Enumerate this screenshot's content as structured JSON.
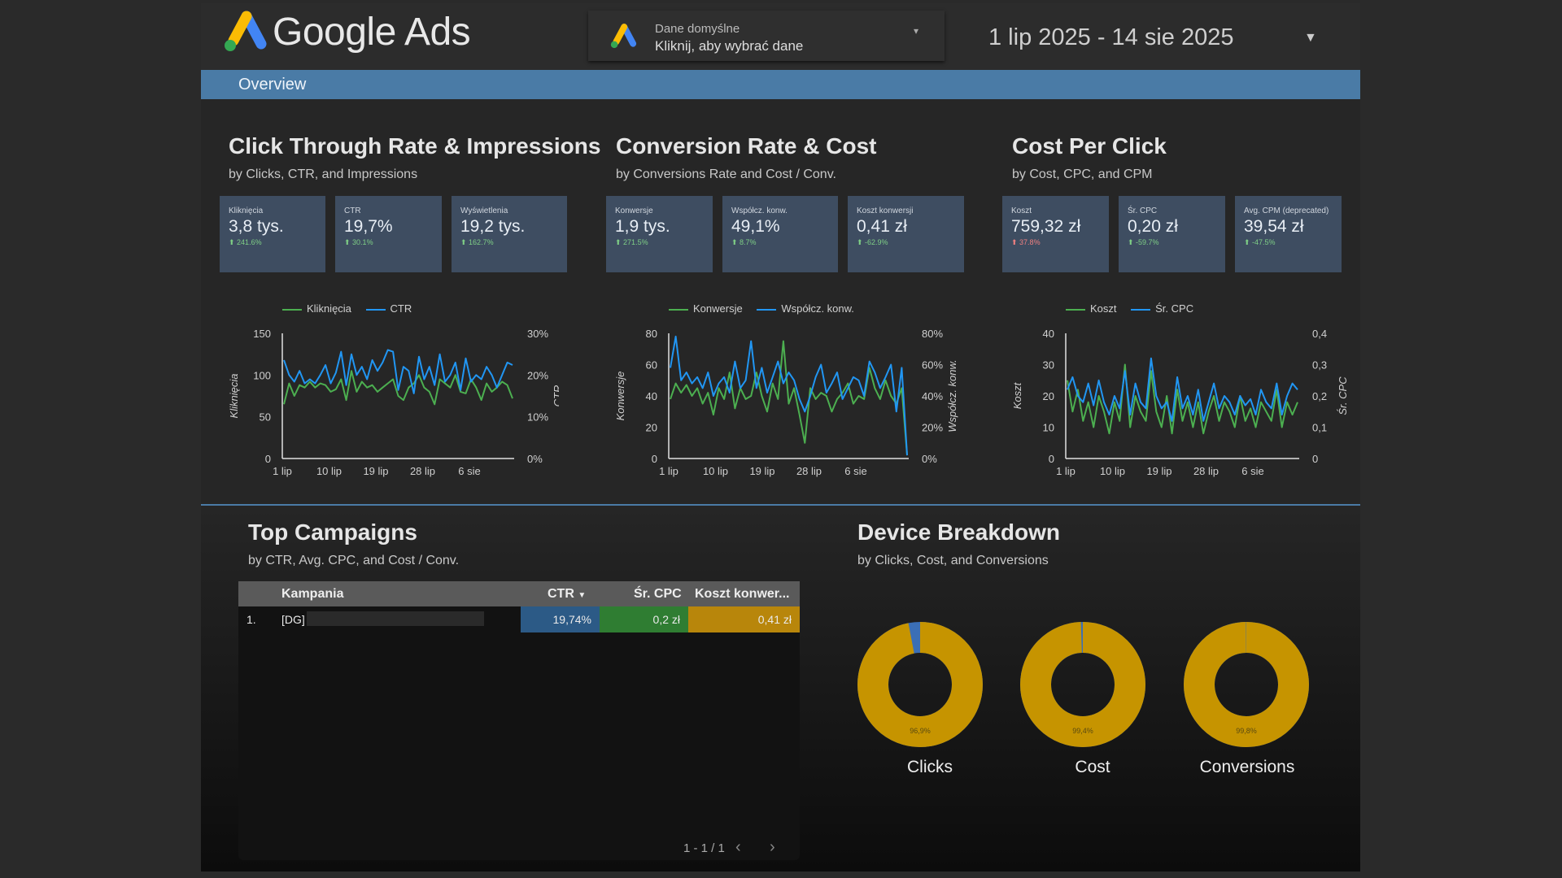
{
  "header": {
    "brand": "Google Ads",
    "data_source_title": "Dane domyślne",
    "data_source_subtitle": "Kliknij, aby wybrać dane",
    "date_range": "1 lip 2025 - 14 sie 2025"
  },
  "nav": {
    "tab_overview": "Overview"
  },
  "colors": {
    "accent": "#4a7ba6",
    "green": "#4caf50",
    "blue": "#2196f3",
    "gold": "#c69400",
    "tile": "#3e4d61"
  },
  "sections": {
    "ctr": {
      "title": "Click Through Rate & Impressions",
      "subtitle": "by Clicks, CTR, and Impressions"
    },
    "conv": {
      "title": "Conversion Rate & Cost",
      "subtitle": "by Conversions Rate and Cost / Conv."
    },
    "cpc": {
      "title": "Cost Per Click",
      "subtitle": "by Cost, CPC, and CPM"
    },
    "campaigns": {
      "title": "Top Campaigns",
      "subtitle": "by CTR, Avg. CPC, and Cost / Conv."
    },
    "devices": {
      "title": "Device Breakdown",
      "subtitle": "by Clicks, Cost, and Conversions"
    }
  },
  "kpis": [
    {
      "label": "Kliknięcia",
      "value": "3,8 tys.",
      "delta": "241.6%",
      "dir": "up"
    },
    {
      "label": "CTR",
      "value": "19,7%",
      "delta": "30.1%",
      "dir": "up"
    },
    {
      "label": "Wyświetlenia",
      "value": "19,2 tys.",
      "delta": "162.7%",
      "dir": "up"
    },
    {
      "label": "Konwersje",
      "value": "1,9 tys.",
      "delta": "271.5%",
      "dir": "up"
    },
    {
      "label": "Współcz. konw.",
      "value": "49,1%",
      "delta": "8.7%",
      "dir": "up"
    },
    {
      "label": "Koszt konwersji",
      "value": "0,41 zł",
      "delta": "-62.9%",
      "dir": "up"
    },
    {
      "label": "Koszt",
      "value": "759,32 zł",
      "delta": "37.8%",
      "dir": "down"
    },
    {
      "label": "Śr. CPC",
      "value": "0,20 zł",
      "delta": "-59.7%",
      "dir": "up"
    },
    {
      "label": "Avg. CPM (deprecated)",
      "value": "39,54 zł",
      "delta": "-47.5%",
      "dir": "up"
    }
  ],
  "chart_data": [
    {
      "type": "line",
      "x_ticks": [
        "1 lip",
        "10 lip",
        "19 lip",
        "28 lip",
        "6 sie"
      ],
      "y_left": {
        "label": "Kliknięcia",
        "ticks": [
          "0",
          "50",
          "100",
          "150"
        ],
        "ylim": [
          0,
          150
        ]
      },
      "y_right": {
        "label": "CTR",
        "ticks": [
          "0%",
          "10%",
          "20%",
          "30%"
        ],
        "ylim": [
          0,
          30
        ]
      },
      "series": [
        {
          "name": "Kliknięcia",
          "axis": "left",
          "color": "#4caf50",
          "values": [
            65,
            90,
            75,
            88,
            85,
            92,
            85,
            90,
            88,
            80,
            83,
            95,
            70,
            105,
            80,
            92,
            85,
            88,
            80,
            85,
            90,
            95,
            75,
            70,
            85,
            90,
            100,
            85,
            80,
            65,
            95,
            90,
            85,
            100,
            80,
            78,
            95,
            85,
            70,
            90,
            80,
            85,
            92,
            88,
            72
          ]
        },
        {
          "name": "CTR",
          "axis": "left",
          "color": "#2196f3",
          "values": [
            118,
            100,
            92,
            105,
            90,
            95,
            90,
            100,
            112,
            90,
            103,
            128,
            88,
            125,
            100,
            110,
            95,
            118,
            105,
            115,
            130,
            128,
            82,
            110,
            105,
            78,
            122,
            95,
            110,
            88,
            125,
            92,
            100,
            115,
            82,
            120,
            92,
            100,
            95,
            110,
            100,
            85,
            100,
            115,
            112
          ]
        }
      ]
    },
    {
      "type": "line",
      "x_ticks": [
        "1 lip",
        "10 lip",
        "19 lip",
        "28 lip",
        "6 sie"
      ],
      "y_left": {
        "label": "Konwersje",
        "ticks": [
          "0",
          "20",
          "40",
          "60",
          "80"
        ],
        "ylim": [
          0,
          80
        ]
      },
      "y_right": {
        "label": "Współcz. konw.",
        "ticks": [
          "0%",
          "20%",
          "40%",
          "60%",
          "80%"
        ],
        "ylim": [
          0,
          80
        ]
      },
      "series": [
        {
          "name": "Konwersje",
          "axis": "left",
          "color": "#4caf50",
          "values": [
            38,
            48,
            42,
            47,
            40,
            45,
            35,
            42,
            28,
            45,
            38,
            55,
            32,
            45,
            38,
            40,
            55,
            40,
            30,
            48,
            38,
            75,
            35,
            45,
            28,
            10,
            45,
            38,
            42,
            40,
            30,
            38,
            42,
            48,
            35,
            40,
            38,
            58,
            45,
            38,
            50,
            40,
            35,
            45,
            2
          ]
        },
        {
          "name": "Współcz. konw.",
          "axis": "left",
          "color": "#2196f3",
          "values": [
            58,
            78,
            50,
            55,
            48,
            52,
            45,
            55,
            40,
            48,
            52,
            42,
            62,
            45,
            50,
            75,
            45,
            58,
            42,
            52,
            62,
            48,
            55,
            50,
            38,
            30,
            40,
            52,
            60,
            42,
            48,
            55,
            38,
            45,
            52,
            50,
            40,
            62,
            55,
            45,
            52,
            60,
            30,
            58,
            2
          ]
        }
      ]
    },
    {
      "type": "line",
      "x_ticks": [
        "1 lip",
        "10 lip",
        "19 lip",
        "28 lip",
        "6 sie"
      ],
      "y_left": {
        "label": "Koszt",
        "ticks": [
          "0",
          "10",
          "20",
          "30",
          "40"
        ],
        "ylim": [
          0,
          40
        ]
      },
      "y_right": {
        "label": "Śr. CPC",
        "ticks": [
          "0",
          "0,1",
          "0,2",
          "0,3",
          "0,4"
        ],
        "ylim": [
          0,
          0.4
        ]
      },
      "series": [
        {
          "name": "Koszt",
          "axis": "left",
          "color": "#4caf50",
          "values": [
            25,
            15,
            22,
            12,
            18,
            10,
            20,
            15,
            8,
            18,
            12,
            30,
            10,
            20,
            15,
            12,
            28,
            15,
            10,
            20,
            8,
            22,
            12,
            18,
            10,
            18,
            8,
            15,
            20,
            12,
            18,
            15,
            10,
            20,
            12,
            16,
            10,
            18,
            15,
            12,
            22,
            10,
            18,
            14,
            18
          ]
        },
        {
          "name": "Śr. CPC",
          "axis": "left",
          "color": "#2196f3",
          "values": [
            22,
            26,
            20,
            18,
            24,
            17,
            25,
            18,
            14,
            20,
            16,
            28,
            14,
            24,
            18,
            16,
            32,
            20,
            16,
            18,
            12,
            26,
            16,
            20,
            14,
            22,
            12,
            18,
            24,
            16,
            20,
            18,
            14,
            20,
            17,
            19,
            14,
            22,
            18,
            16,
            24,
            14,
            20,
            24,
            22
          ]
        }
      ]
    },
    {
      "type": "table",
      "columns": [
        "Kampania",
        "CTR",
        "Śr. CPC",
        "Koszt konwer..."
      ],
      "rows": [
        [
          "1.",
          "[DG]",
          "19,74%",
          "0,2 zł",
          "0,41 zł"
        ]
      ],
      "pagination": "1 - 1 / 1"
    },
    {
      "type": "pie",
      "donuts": [
        {
          "label": "Clicks",
          "percent_label": "96,9%",
          "major": 96.9
        },
        {
          "label": "Cost",
          "percent_label": "99,4%",
          "major": 99.4
        },
        {
          "label": "Conversions",
          "percent_label": "99,8%",
          "major": 99.8
        }
      ]
    }
  ]
}
